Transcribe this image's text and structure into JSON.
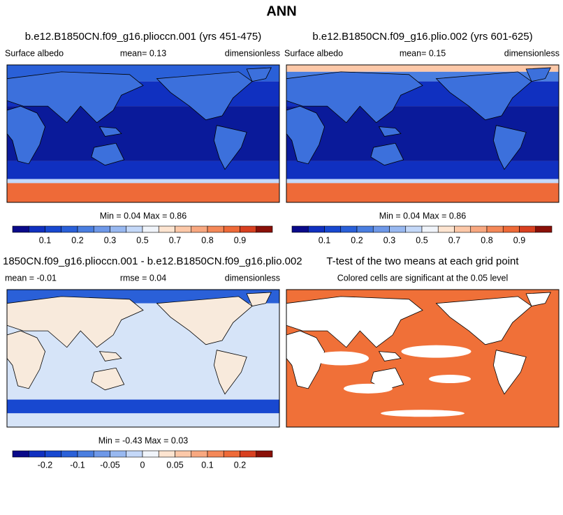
{
  "title": "ANN",
  "panels": [
    {
      "title": "b.e12.B1850CN.f09_g16.plioccn.001 (yrs 451-475)",
      "left": "Surface albedo",
      "center": "mean=   0.13",
      "right": "dimensionless",
      "stats": "Min =   0.04 Max =   0.86",
      "colorbar": {
        "colors": [
          "#0a0a8a",
          "#1030c0",
          "#1848d0",
          "#2a60d8",
          "#4a7ee0",
          "#6e98e8",
          "#98b8f0",
          "#c4d8f8",
          "#f0f4fa",
          "#fde4d0",
          "#fcc8a8",
          "#f8a880",
          "#f48858",
          "#ee6a38",
          "#d84020",
          "#8a1008"
        ],
        "labels": [
          "0.1",
          "0.2",
          "0.3",
          "0.5",
          "0.7",
          "0.8",
          "0.9"
        ]
      }
    },
    {
      "title": "b.e12.B1850CN.f09_g16.plio.002 (yrs 601-625)",
      "left": "Surface albedo",
      "center": "mean=   0.15",
      "right": "dimensionless",
      "stats": "Min =   0.04 Max =   0.86",
      "colorbar": {
        "colors": [
          "#0a0a8a",
          "#1030c0",
          "#1848d0",
          "#2a60d8",
          "#4a7ee0",
          "#6e98e8",
          "#98b8f0",
          "#c4d8f8",
          "#f0f4fa",
          "#fde4d0",
          "#fcc8a8",
          "#f8a880",
          "#f48858",
          "#ee6a38",
          "#d84020",
          "#8a1008"
        ],
        "labels": [
          "0.1",
          "0.2",
          "0.3",
          "0.5",
          "0.7",
          "0.8",
          "0.9"
        ]
      }
    },
    {
      "title": "1850CN.f09_g16.plioccn.001 - b.e12.B1850CN.f09_g16.plio.002",
      "left": "mean =  -0.01",
      "center": "rmse =   0.04",
      "right": "dimensionless",
      "stats": "Min =  -0.43 Max =   0.03",
      "colorbar": {
        "colors": [
          "#0a0a8a",
          "#1030c0",
          "#1848d0",
          "#2a60d8",
          "#4a7ee0",
          "#6e98e8",
          "#98b8f0",
          "#c4d8f8",
          "#f0f4fa",
          "#fde4d0",
          "#fcc8a8",
          "#f8a880",
          "#f48858",
          "#ee6a38",
          "#d84020",
          "#8a1008"
        ],
        "labels": [
          "-0.2",
          "-0.1",
          "-0.05",
          "0",
          "0.05",
          "0.1",
          "0.2"
        ]
      }
    },
    {
      "title": "T-test of the two means at each grid point",
      "center": "Colored cells are significant at the 0.05 level"
    }
  ]
}
